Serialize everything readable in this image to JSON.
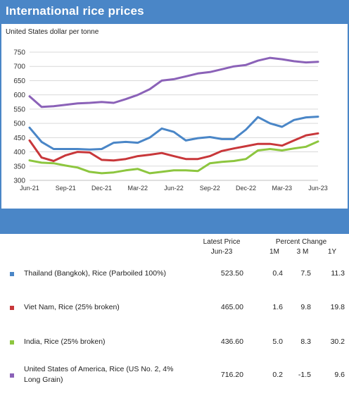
{
  "title": "International rice prices",
  "unit_label": "United States dollar per tonne",
  "table": {
    "latest_price_label": "Latest Price",
    "latest_price_period": "Jun-23",
    "percent_change_label": "Percent Change",
    "col_1m": "1M",
    "col_3m": "3 M",
    "col_1y": "1Y",
    "rows": [
      {
        "label": "Thailand (Bangkok), Rice (Parboiled 100%)",
        "price": "523.50",
        "m1": "0.4",
        "m3": "7.5",
        "y1": "11.3",
        "color": "#4a86c7"
      },
      {
        "label": "Viet Nam, Rice (25% broken)",
        "price": "465.00",
        "m1": "1.6",
        "m3": "9.8",
        "y1": "19.8",
        "color": "#c8373a"
      },
      {
        "label": "India, Rice (25% broken)",
        "price": "436.60",
        "m1": "5.0",
        "m3": "8.3",
        "y1": "30.2",
        "color": "#8dc63f"
      },
      {
        "label_line1": "United States of America, Rice (US No. 2, 4%",
        "label_line2": "Long Grain)",
        "price": "716.20",
        "m1": "0.2",
        "m3": "-1.5",
        "y1": "9.6",
        "color": "#8b62b8"
      }
    ]
  },
  "chart_data": {
    "type": "line",
    "title": "International rice prices",
    "ylabel": "United States dollar per tonne",
    "ylim": [
      300,
      750
    ],
    "yticks": [
      300,
      350,
      400,
      450,
      500,
      550,
      600,
      650,
      700,
      750
    ],
    "xtick_labels": [
      "Jun-21",
      "Sep-21",
      "Dec-21",
      "Mar-22",
      "Jun-22",
      "Sep-22",
      "Dec-22",
      "Mar-23",
      "Jun-23"
    ],
    "x": [
      "Jun-21",
      "Jul-21",
      "Aug-21",
      "Sep-21",
      "Oct-21",
      "Nov-21",
      "Dec-21",
      "Jan-22",
      "Feb-22",
      "Mar-22",
      "Apr-22",
      "May-22",
      "Jun-22",
      "Jul-22",
      "Aug-22",
      "Sep-22",
      "Oct-22",
      "Nov-22",
      "Dec-22",
      "Jan-23",
      "Feb-23",
      "Mar-23",
      "Apr-23",
      "May-23",
      "Jun-23"
    ],
    "grid": "horizontal",
    "series": [
      {
        "name": "Thailand (Bangkok), Rice (Parboiled 100%)",
        "color": "#4a86c7",
        "values": [
          485,
          435,
          410,
          410,
          410,
          408,
          410,
          432,
          435,
          432,
          450,
          482,
          470,
          440,
          448,
          452,
          445,
          445,
          478,
          522,
          500,
          488,
          512,
          521,
          523.5
        ]
      },
      {
        "name": "Viet Nam, Rice (25% broken)",
        "color": "#c8373a",
        "values": [
          440,
          380,
          368,
          388,
          400,
          398,
          372,
          370,
          375,
          385,
          390,
          396,
          385,
          375,
          375,
          385,
          403,
          412,
          420,
          428,
          428,
          422,
          440,
          458,
          465
        ]
      },
      {
        "name": "India, Rice (25% broken)",
        "color": "#8dc63f",
        "values": [
          370,
          362,
          360,
          352,
          345,
          330,
          325,
          328,
          335,
          340,
          325,
          330,
          335,
          335,
          333,
          360,
          365,
          368,
          375,
          405,
          410,
          405,
          412,
          418,
          436.6
        ]
      },
      {
        "name": "United States of America, Rice (US No. 2, 4% Long Grain)",
        "color": "#8b62b8",
        "values": [
          595,
          558,
          560,
          565,
          570,
          572,
          575,
          572,
          585,
          600,
          620,
          650,
          655,
          665,
          675,
          680,
          690,
          700,
          705,
          720,
          730,
          725,
          718,
          714,
          716.2
        ]
      }
    ]
  }
}
